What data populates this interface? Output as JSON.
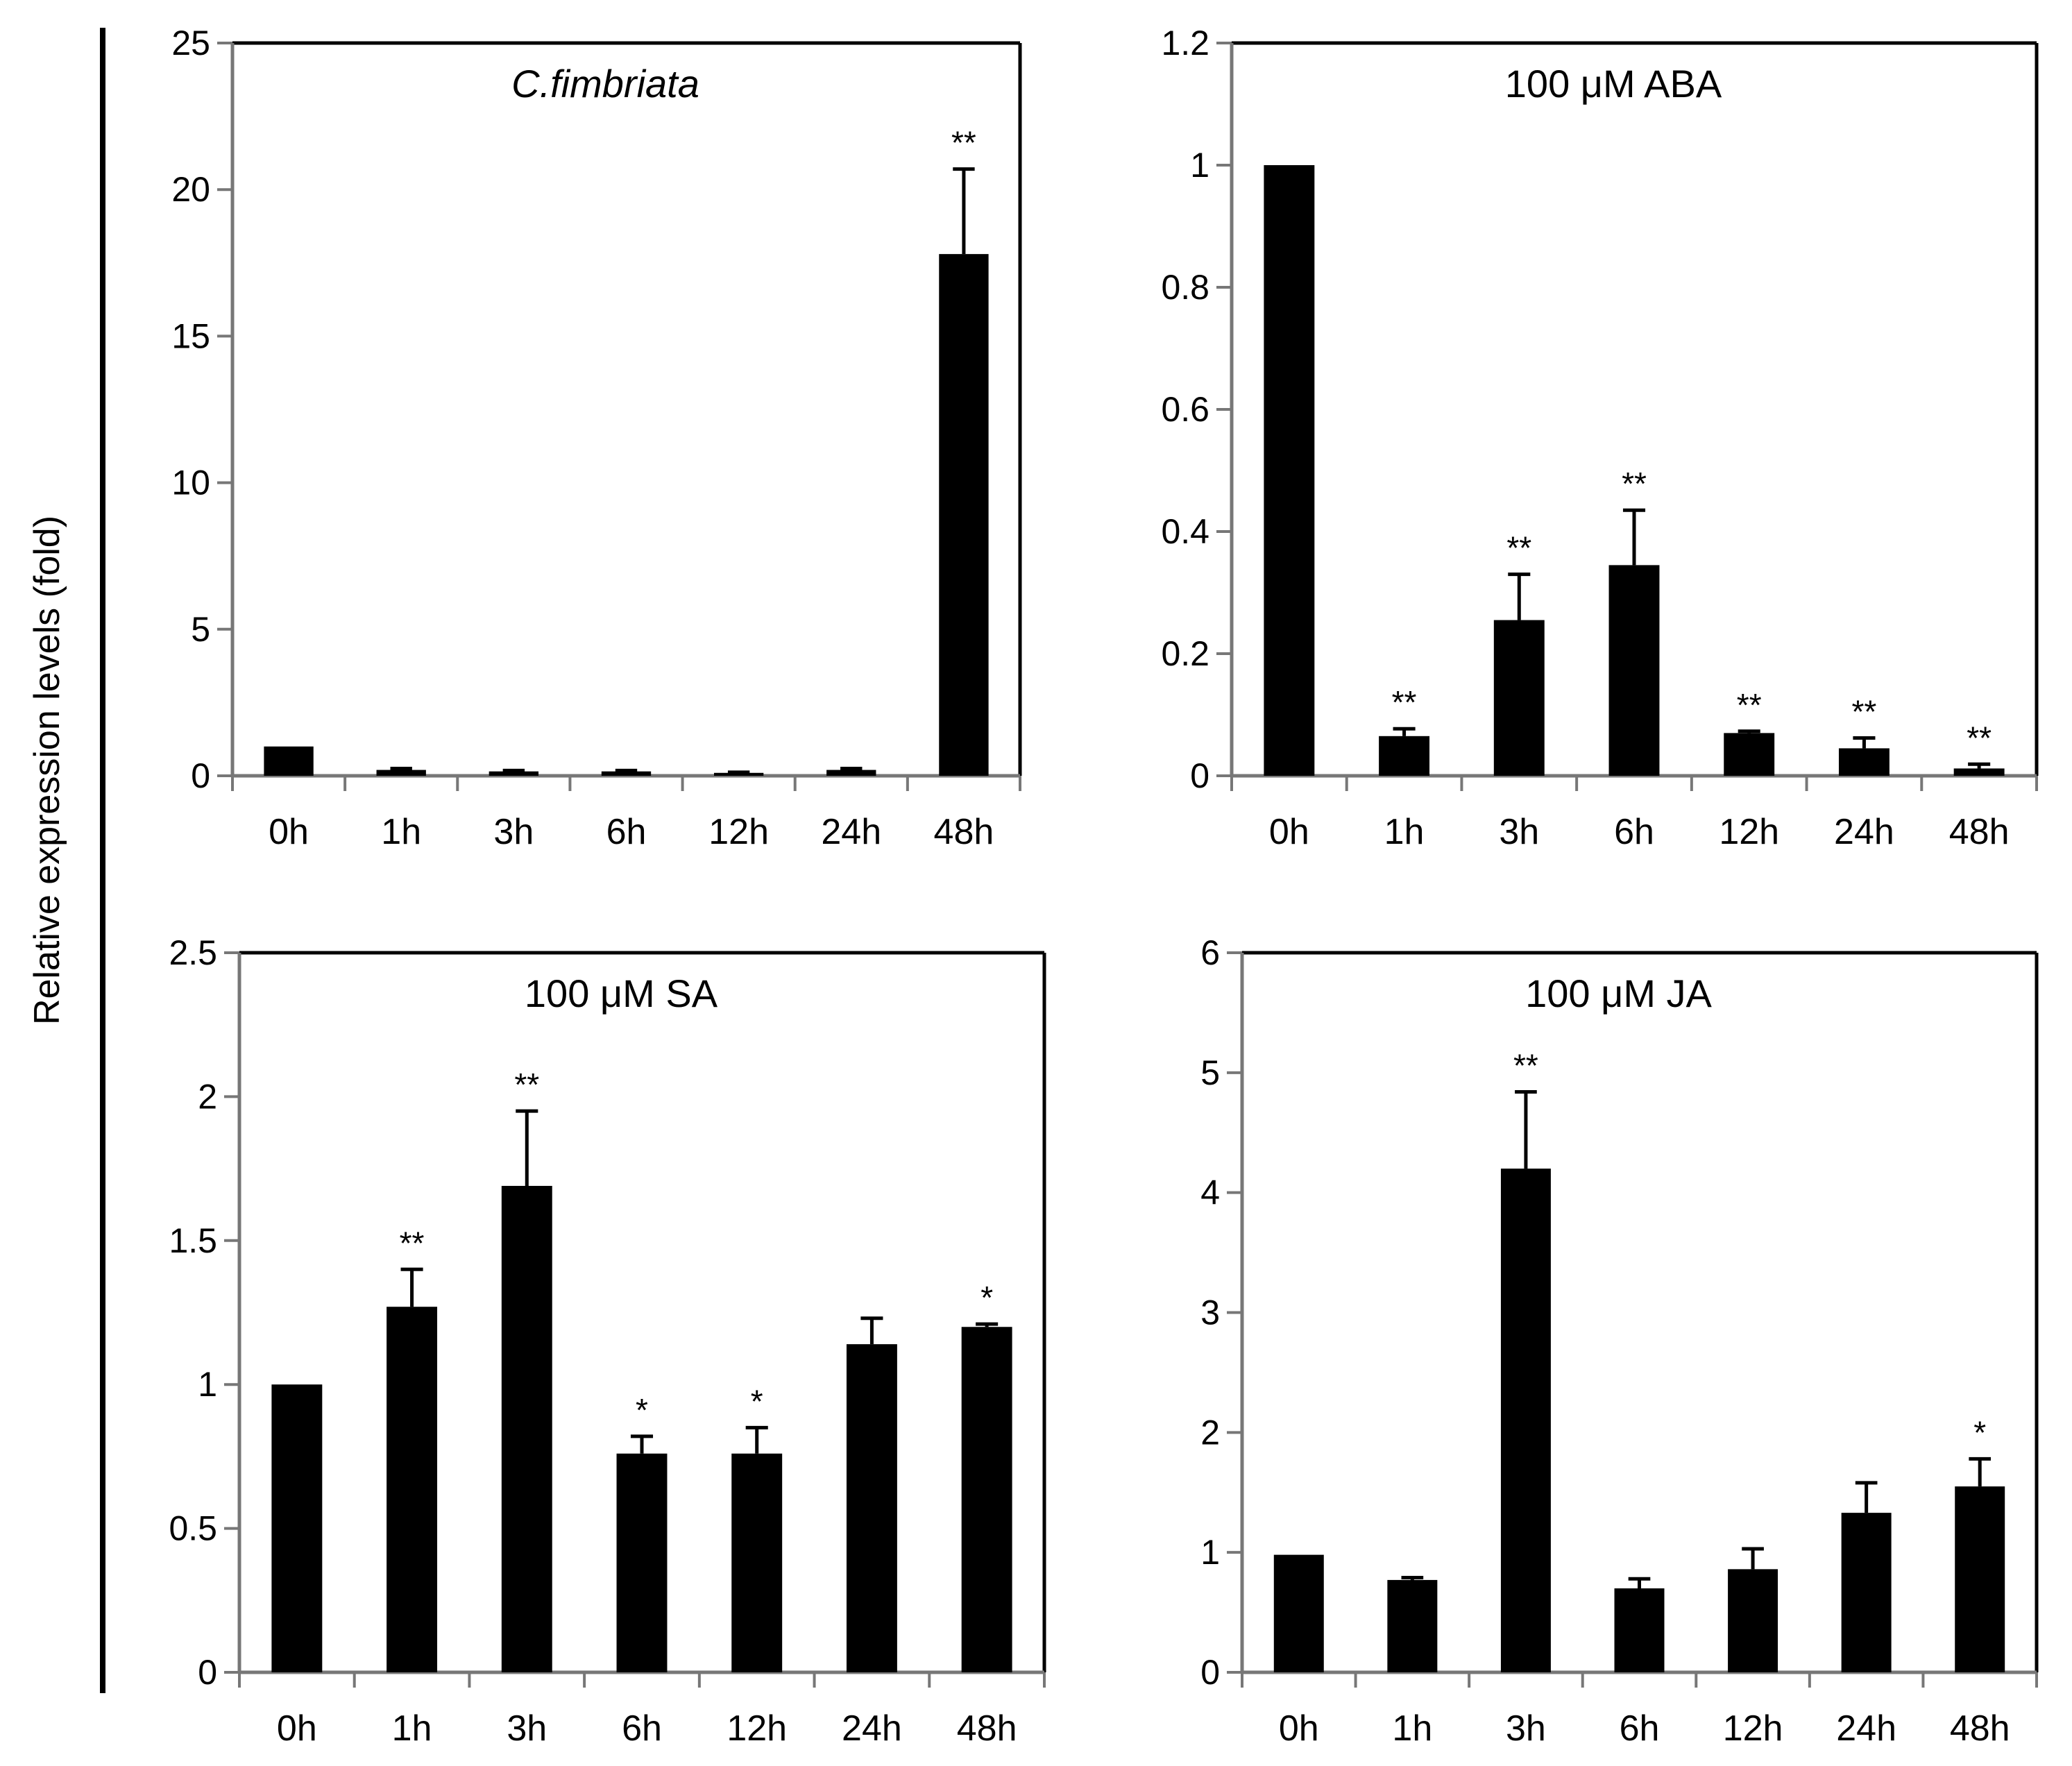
{
  "figure": {
    "ylabel": "Relative expression levels (fold)"
  },
  "chart_data": [
    {
      "type": "bar",
      "title": "C.fimbriata",
      "title_italic": true,
      "categories": [
        "0h",
        "1h",
        "3h",
        "6h",
        "12h",
        "24h",
        "48h"
      ],
      "values": [
        1.0,
        0.2,
        0.15,
        0.15,
        0.1,
        0.2,
        17.8
      ],
      "errors": [
        0.0,
        0.05,
        0.03,
        0.03,
        0.02,
        0.05,
        2.9
      ],
      "significance": [
        "",
        "",
        "",
        "",
        "",
        "",
        "**"
      ],
      "ylim": [
        0,
        25
      ],
      "yticks": [
        0,
        5,
        10,
        15,
        20,
        25
      ],
      "ytick_labels": [
        "0",
        "5",
        "10",
        "15",
        "20",
        "25"
      ],
      "xlabel": "",
      "ylabel": ""
    },
    {
      "type": "bar",
      "title": "100  μM ABA",
      "title_italic": false,
      "categories": [
        "0h",
        "1h",
        "3h",
        "6h",
        "12h",
        "24h",
        "48h"
      ],
      "values": [
        1.0,
        0.065,
        0.255,
        0.345,
        0.07,
        0.045,
        0.012
      ],
      "errors": [
        0.0,
        0.012,
        0.075,
        0.09,
        0.003,
        0.017,
        0.007
      ],
      "significance": [
        "",
        "**",
        "**",
        "**",
        "**",
        "**",
        "**"
      ],
      "ylim": [
        0,
        1.2
      ],
      "yticks": [
        0,
        0.2,
        0.4,
        0.6,
        0.8,
        1,
        1.2
      ],
      "ytick_labels": [
        "0",
        "0.2",
        "0.4",
        "0.6",
        "0.8",
        "1",
        "1.2"
      ],
      "xlabel": "",
      "ylabel": ""
    },
    {
      "type": "bar",
      "title": "100 μM SA",
      "title_italic": false,
      "categories": [
        "0h",
        "1h",
        "3h",
        "6h",
        "12h",
        "24h",
        "48h"
      ],
      "values": [
        1.0,
        1.27,
        1.69,
        0.76,
        0.76,
        1.14,
        1.2
      ],
      "errors": [
        0.0,
        0.13,
        0.26,
        0.06,
        0.09,
        0.09,
        0.01
      ],
      "significance": [
        "",
        "**",
        "**",
        "*",
        "*",
        "",
        "*"
      ],
      "ylim": [
        0,
        2.5
      ],
      "yticks": [
        0,
        0.5,
        1,
        1.5,
        2,
        2.5
      ],
      "ytick_labels": [
        "0",
        "0.5",
        "1",
        "1.5",
        "2",
        "2.5"
      ],
      "xlabel": "",
      "ylabel": ""
    },
    {
      "type": "bar",
      "title": "100 μM JA",
      "title_italic": false,
      "categories": [
        "0h",
        "1h",
        "3h",
        "6h",
        "12h",
        "24h",
        "48h"
      ],
      "values": [
        0.98,
        0.77,
        4.2,
        0.7,
        0.86,
        1.33,
        1.55
      ],
      "errors": [
        0.0,
        0.02,
        0.64,
        0.08,
        0.17,
        0.25,
        0.23
      ],
      "significance": [
        "",
        "",
        "**",
        "",
        "",
        "",
        "*"
      ],
      "ylim": [
        0,
        6
      ],
      "yticks": [
        0,
        1,
        2,
        3,
        4,
        5,
        6
      ],
      "ytick_labels": [
        "0",
        "1",
        "2",
        "3",
        "4",
        "5",
        "6"
      ],
      "xlabel": "",
      "ylabel": ""
    }
  ]
}
